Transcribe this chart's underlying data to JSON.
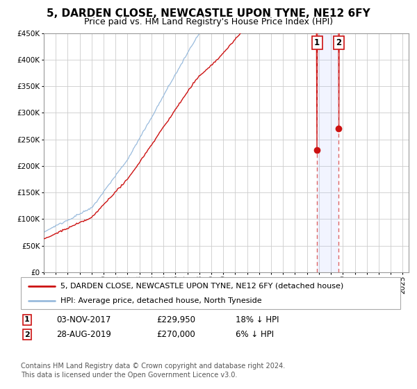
{
  "title": "5, DARDEN CLOSE, NEWCASTLE UPON TYNE, NE12 6FY",
  "subtitle": "Price paid vs. HM Land Registry's House Price Index (HPI)",
  "ylim": [
    0,
    450000
  ],
  "xlim_start": 1995.0,
  "xlim_end": 2025.5,
  "background_color": "#ffffff",
  "grid_color": "#cccccc",
  "hpi_color": "#99bbdd",
  "price_color": "#cc1111",
  "marker_color": "#cc1111",
  "sale1_x": 2017.84,
  "sale1_y": 229950,
  "sale2_x": 2019.66,
  "sale2_y": 270000,
  "legend_label_price": "5, DARDEN CLOSE, NEWCASTLE UPON TYNE, NE12 6FY (detached house)",
  "legend_label_hpi": "HPI: Average price, detached house, North Tyneside",
  "table_row1": [
    "1",
    "03-NOV-2017",
    "£229,950",
    "18% ↓ HPI"
  ],
  "table_row2": [
    "2",
    "28-AUG-2019",
    "£270,000",
    "6% ↓ HPI"
  ],
  "footnote": "Contains HM Land Registry data © Crown copyright and database right 2024.\nThis data is licensed under the Open Government Licence v3.0.",
  "title_fontsize": 11,
  "subtitle_fontsize": 9,
  "tick_fontsize": 7.5,
  "legend_fontsize": 8,
  "table_fontsize": 8.5,
  "footnote_fontsize": 7
}
